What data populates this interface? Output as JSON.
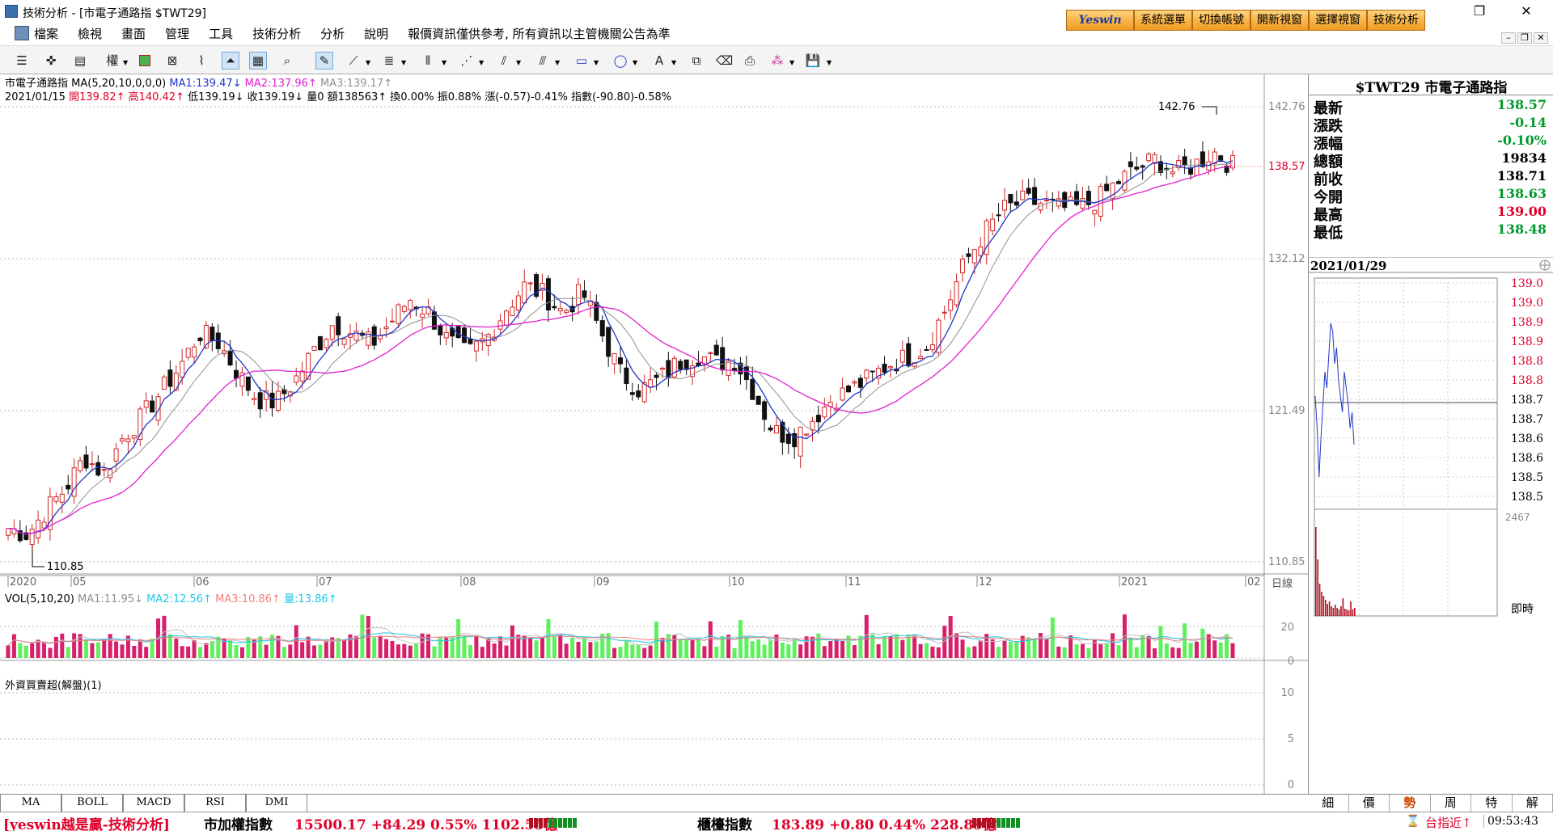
{
  "window": {
    "title": "技術分析 - [市電子通路指 $TWT29]"
  },
  "topbar": {
    "brand": "Yeswin",
    "buttons": [
      "系統選單",
      "切換帳號",
      "開新視窗",
      "選擇視窗",
      "技術分析"
    ]
  },
  "menu": {
    "items": [
      "檔案",
      "檢視",
      "畫面",
      "管理",
      "工具",
      "技術分析",
      "分析",
      "說明",
      "報價資訊僅供參考, 所有資訊以主管機關公告為準"
    ]
  },
  "toolbar": {
    "weight_label": "權"
  },
  "chart": {
    "header": {
      "name": "市電子通路指",
      "ma_params": "MA(5,20,10,0,0,0)",
      "ma1": "MA1:139.47↓",
      "ma2": "MA2:137.96↑",
      "ma3": "MA3:139.17↑"
    },
    "info": {
      "date": "2021/01/15",
      "open": "開139.82↑",
      "high": "高140.42↑",
      "low": "低139.19↓",
      "close": "收139.19↓",
      "volume": "量0",
      "amount": "額138563↑",
      "turnover": "換0.00%",
      "amplitude": "振0.88%",
      "change": "漲(-0.57)-0.41%",
      "index": "指數(-90.80)-0.58%"
    },
    "price_axis": [
      "142.76",
      "132.12",
      "121.49",
      "110.85"
    ],
    "last_price_tag": "138.57",
    "max_label": "142.76",
    "min_label": "110.85",
    "month_labels": [
      "2020",
      "05",
      "06",
      "07",
      "08",
      "09",
      "10",
      "11",
      "12",
      "2021",
      "02"
    ],
    "period_label": "日線",
    "vol_header": {
      "label": "VOL(5,10,20)",
      "ma1": "MA1:11.95↓",
      "ma2": "MA2:12.56↑",
      "ma3": "MA3:10.86↑",
      "vol": "量:13.86↑"
    },
    "vol_axis": [
      "20",
      "0"
    ],
    "foreign_header": "外資買賣超(解盤)(1)",
    "foreign_axis": [
      "10",
      "5",
      "0"
    ]
  },
  "quote_panel": {
    "title": "$TWT29 市電子通路指",
    "rows": [
      {
        "label": "最新",
        "value": "138.57",
        "color": "#009a2c"
      },
      {
        "label": "漲跌",
        "value": "-0.14",
        "color": "#009a2c"
      },
      {
        "label": "漲幅",
        "value": "-0.10%",
        "color": "#009a2c"
      },
      {
        "label": "總額",
        "value": "19834",
        "color": "#000000"
      },
      {
        "label": "前收",
        "value": "138.71",
        "color": "#000000"
      },
      {
        "label": "今開",
        "value": "138.63",
        "color": "#009a2c"
      },
      {
        "label": "最高",
        "value": "139.00",
        "color": "#e0002a"
      },
      {
        "label": "最低",
        "value": "138.48",
        "color": "#009a2c"
      }
    ],
    "intraday_date": "2021/01/29",
    "intraday_axis": [
      "139.0",
      "139.0",
      "138.9",
      "138.9",
      "138.8",
      "138.8",
      "138.7",
      "138.7",
      "138.6",
      "138.6",
      "138.5",
      "138.5"
    ],
    "intraday_vol_max": "2467",
    "realtime_label": "即時"
  },
  "bottom_tabs": [
    "MA",
    "BOLL",
    "MACD",
    "RSI",
    "DMI"
  ],
  "side_tabs": [
    "細",
    "價",
    "勢",
    "周",
    "特",
    "解"
  ],
  "active_side_tab": "勢",
  "statusbar": {
    "brand": "[yeswin越是贏-技術分析]",
    "taiex_label": "市加權指數",
    "taiex_value": "15500.17 +84.29 0.55% 1102.55億",
    "otc_label": "櫃檯指數",
    "otc_value": "183.89 +0.80 0.44% 228.89億",
    "tip": "台指近↑",
    "time": "09:53:43"
  },
  "colors": {
    "up": "#e0002a",
    "down": "#009a2c",
    "ma1": "#1f37c8",
    "ma2": "#e020d0",
    "ma3": "#909090",
    "candle_up": "#cc2a2a",
    "candle_down": "#111111",
    "vol_up": "#d8206a",
    "vol_down": "#5ef05e"
  },
  "chart_data": {
    "type": "candlestick",
    "period": "daily",
    "x_range": [
      "2020-04",
      "2021-01-29"
    ],
    "y_range": [
      110.85,
      142.76
    ],
    "series": [
      {
        "name": "MA1",
        "values": []
      },
      {
        "name": "MA2",
        "values": []
      },
      {
        "name": "MA3",
        "values": []
      }
    ],
    "close_path": [
      113.2,
      112.8,
      114.5,
      116.0,
      118.2,
      117.0,
      119.6,
      121.0,
      122.8,
      124.6,
      126.9,
      126.2,
      124.1,
      122.3,
      122.0,
      123.6,
      125.7,
      127.6,
      126.9,
      126.1,
      127.7,
      129.3,
      128.3,
      126.3,
      125.4,
      126.5,
      128.6,
      130.2,
      129.6,
      128.3,
      129.8,
      126.9,
      124.1,
      122.9,
      123.6,
      124.8,
      125.4,
      124.8,
      125.0,
      122.7,
      120.0,
      119.6,
      120.8,
      122.2,
      122.9,
      123.7,
      124.7,
      125.2,
      126.0,
      128.6,
      131.8,
      133.9,
      135.5,
      136.1,
      136.0,
      135.6,
      135.7,
      136.3,
      137.5,
      138.4,
      139.1,
      138.1,
      138.7,
      139.6,
      138.6
    ],
    "candle_range": [
      113,
      142.76
    ]
  }
}
